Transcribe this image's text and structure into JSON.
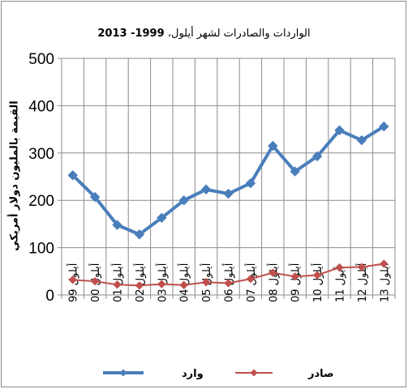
{
  "chart_data": {
    "type": "line",
    "title_ar": "الواردات والصادرات لشهر أيلول، ",
    "title_years": "1999- 2013",
    "ylabel": "القيمة بالمليون دولار أمريكي",
    "ylim": [
      0,
      500
    ],
    "yticks": [
      "0",
      "100",
      "200",
      "300",
      "400",
      "500"
    ],
    "categories": [
      "أيلول 99",
      "أيلول 00",
      "أيلول 01",
      "أيلول 02",
      "أيلول 03",
      "أيلول 04",
      "أيلول 05",
      "أيلول 06",
      "أيلول 07",
      "أيلول 08",
      "أيلول 09",
      "أيلول 10",
      "أيول 11",
      "أيلول 12",
      "أيلول 13"
    ],
    "grid": true,
    "legend_position": "bottom",
    "series": [
      {
        "name": "وارد",
        "color": "#4a7ebb",
        "marker": "diamond",
        "values": [
          253,
          207,
          148,
          128,
          163,
          200,
          223,
          214,
          236,
          315,
          261,
          293,
          348,
          327,
          356
        ]
      },
      {
        "name": "صادر",
        "color": "#c0504d",
        "marker": "diamond",
        "values": [
          32,
          29,
          22,
          20,
          23,
          21,
          27,
          25,
          34,
          47,
          39,
          42,
          58,
          59,
          66
        ]
      }
    ]
  }
}
